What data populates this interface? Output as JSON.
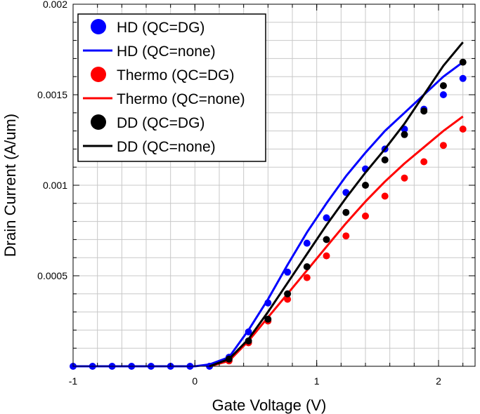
{
  "chart_data": {
    "type": "line",
    "xlabel": "Gate Voltage (V)",
    "ylabel": "Drain Current (A/um)",
    "xlim": [
      -1,
      2.3
    ],
    "ylim": [
      0,
      0.002
    ],
    "x_ticks": [
      {
        "value": -1,
        "label": "-1"
      },
      {
        "value": 0,
        "label": "0"
      },
      {
        "value": 1,
        "label": "1"
      },
      {
        "value": 2,
        "label": "2"
      }
    ],
    "y_ticks": [
      {
        "value": 0.0005,
        "label": "0.0005"
      },
      {
        "value": 0.001,
        "label": "0.001"
      },
      {
        "value": 0.0015,
        "label": "0.0015"
      },
      {
        "value": 0.002,
        "label": "0.002"
      }
    ],
    "grid": true,
    "legend_position": "top-left",
    "series": [
      {
        "name": "HD (QC=DG)",
        "kind": "points",
        "color": "#0000ff",
        "x": [
          -1.0,
          -0.84,
          -0.68,
          -0.52,
          -0.36,
          -0.2,
          -0.04,
          0.12,
          0.28,
          0.44,
          0.6,
          0.76,
          0.92,
          1.08,
          1.24,
          1.4,
          1.56,
          1.72,
          1.88,
          2.04,
          2.2
        ],
        "y": [
          0,
          0,
          0,
          0,
          0,
          0,
          0,
          0,
          5e-05,
          0.00019,
          0.00035,
          0.00052,
          0.00068,
          0.00082,
          0.00096,
          0.00109,
          0.0012,
          0.00131,
          0.00142,
          0.0015,
          0.00159
        ]
      },
      {
        "name": "HD (QC=none)",
        "kind": "line",
        "color": "#0000ff",
        "x": [
          -1.0,
          -0.6,
          -0.2,
          0.0,
          0.12,
          0.28,
          0.44,
          0.6,
          0.76,
          0.92,
          1.08,
          1.24,
          1.4,
          1.56,
          1.72,
          1.88,
          2.04,
          2.2
        ],
        "y": [
          0,
          0,
          0,
          0,
          1e-05,
          5e-05,
          0.0002,
          0.00037,
          0.00056,
          0.00074,
          0.0009,
          0.00105,
          0.00118,
          0.0013,
          0.0014,
          0.0015,
          0.0016,
          0.00168
        ]
      },
      {
        "name": "Thermo (QC=DG)",
        "kind": "points",
        "color": "#ff0000",
        "x": [
          0.28,
          0.44,
          0.6,
          0.76,
          0.92,
          1.08,
          1.24,
          1.4,
          1.56,
          1.72,
          1.88,
          2.04,
          2.2
        ],
        "y": [
          3e-05,
          0.00013,
          0.00025,
          0.00037,
          0.00049,
          0.00061,
          0.00072,
          0.00083,
          0.00094,
          0.00104,
          0.00113,
          0.00122,
          0.00131
        ]
      },
      {
        "name": "Thermo (QC=none)",
        "kind": "line",
        "color": "#ff0000",
        "x": [
          0.12,
          0.28,
          0.44,
          0.6,
          0.76,
          0.92,
          1.08,
          1.24,
          1.4,
          1.56,
          1.72,
          1.88,
          2.04,
          2.2
        ],
        "y": [
          0,
          3e-05,
          0.00014,
          0.00027,
          0.0004,
          0.00053,
          0.00066,
          0.00079,
          0.00091,
          0.00102,
          0.00112,
          0.00121,
          0.0013,
          0.00138
        ]
      },
      {
        "name": "DD (QC=DG)",
        "kind": "points",
        "color": "#000000",
        "x": [
          0.28,
          0.44,
          0.6,
          0.76,
          0.92,
          1.08,
          1.24,
          1.4,
          1.56,
          1.72,
          1.88,
          2.04,
          2.2
        ],
        "y": [
          4e-05,
          0.00014,
          0.00026,
          0.0004,
          0.00055,
          0.0007,
          0.00085,
          0.001,
          0.00114,
          0.00128,
          0.00141,
          0.00155,
          0.00168
        ]
      },
      {
        "name": "DD (QC=none)",
        "kind": "line",
        "color": "#000000",
        "x": [
          0.12,
          0.28,
          0.44,
          0.6,
          0.76,
          0.92,
          1.08,
          1.24,
          1.4,
          1.56,
          1.72,
          1.88,
          2.04,
          2.2
        ],
        "y": [
          0,
          4e-05,
          0.00015,
          0.0003,
          0.00046,
          0.00062,
          0.00078,
          0.00093,
          0.00107,
          0.0012,
          0.00134,
          0.0015,
          0.00166,
          0.00179
        ]
      }
    ]
  }
}
